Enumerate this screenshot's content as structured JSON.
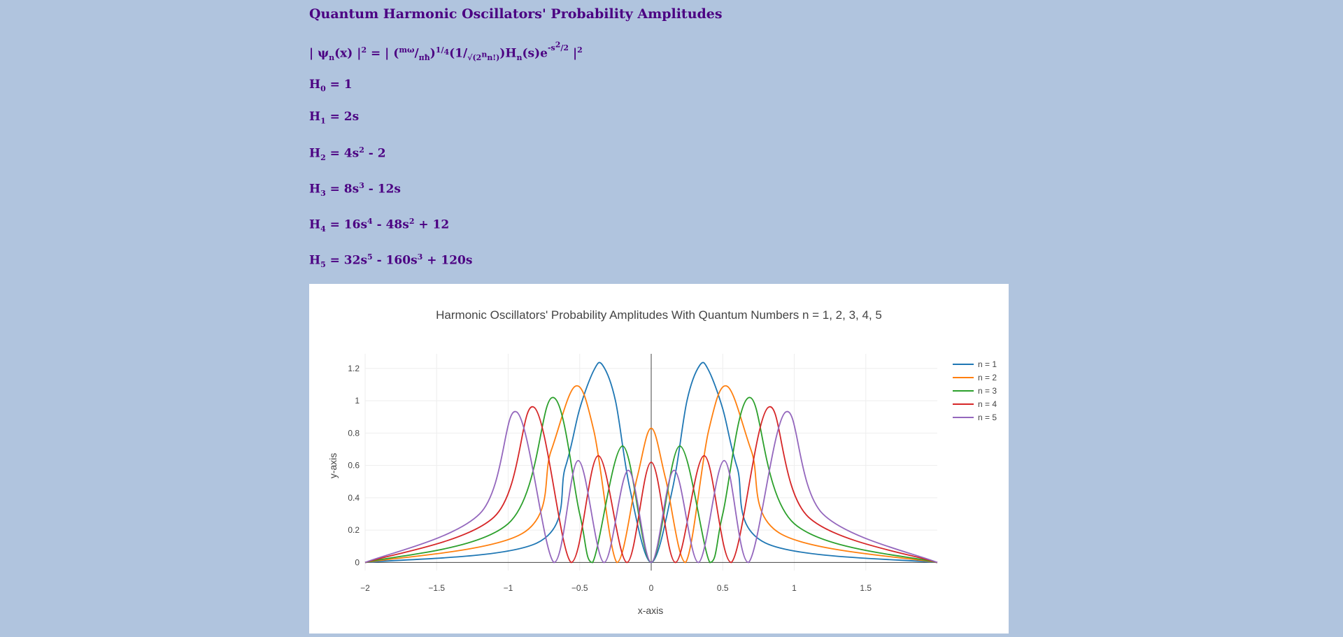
{
  "page": {
    "title": "Quantum Harmonic Oscillators' Probability Amplitudes",
    "formula": {
      "open": "| ψ",
      "sub_n": "n",
      "x_part": "(x) |",
      "sq": "2",
      "eq": " = | (",
      "m_omega": "mω",
      "slash": "/",
      "pi_hbar": "πħ",
      "close": ")",
      "quarter_1": "1",
      "quarter_4": "4",
      "one": "(1",
      "sqrt_part": "√(2",
      "n_sup": "n",
      "nfact": "n!)",
      "paren_close": ")H",
      "sub_n2": "n",
      "s_e": "(s)e",
      "exp_minus": "-s",
      "exp_2": "2",
      "exp_slash": "/",
      "exp_den": "2",
      "end": " |",
      "end_sq": "2"
    },
    "hermite": [
      {
        "h": "H",
        "sub": "0",
        "parts": [
          {
            "t": " = 1"
          }
        ]
      },
      {
        "h": "H",
        "sub": "1",
        "parts": [
          {
            "t": " = 2s"
          }
        ]
      },
      {
        "h": "H",
        "sub": "2",
        "parts": [
          {
            "t": " = 4s",
            "sup": "2"
          },
          {
            "t": " - 2"
          }
        ]
      },
      {
        "h": "H",
        "sub": "3",
        "parts": [
          {
            "t": " = 8s",
            "sup": "3"
          },
          {
            "t": " - 12s"
          }
        ]
      },
      {
        "h": "H",
        "sub": "4",
        "parts": [
          {
            "t": " = 16s",
            "sup": "4"
          },
          {
            "t": " - 48s",
            "sup": "2"
          },
          {
            "t": " + 12"
          }
        ]
      },
      {
        "h": "H",
        "sub": "5",
        "parts": [
          {
            "t": " = 32s",
            "sup": "5"
          },
          {
            "t": " - 160s",
            "sup": "3"
          },
          {
            "t": " + 120s"
          }
        ]
      }
    ]
  },
  "chart_data": {
    "type": "line",
    "title": "Harmonic Oscillators' Probability Amplitudes With Quantum Numbers n = 1, 2, 3, 4, 5",
    "xlabel": "x-axis",
    "ylabel": "y-axis",
    "xlim": [
      -2,
      2
    ],
    "ylim": [
      -0.05,
      1.29
    ],
    "x_ticks": [
      -2,
      -1.5,
      -1,
      -0.5,
      0,
      0.5,
      1,
      1.5
    ],
    "x_tick_labels": [
      "−2",
      "−1.5",
      "−1",
      "−0.5",
      "0",
      "0.5",
      "1",
      "1.5"
    ],
    "y_ticks": [
      0,
      0.2,
      0.4,
      0.6,
      0.8,
      1,
      1.2
    ],
    "y_tick_labels": [
      "0",
      "0.2",
      "0.4",
      "0.6",
      "0.8",
      "1",
      "1.2"
    ],
    "grid": true,
    "legend_position": "top-right",
    "series": [
      {
        "name": "n = 1",
        "color": "#1f77b4",
        "n": 1,
        "x": [
          -0.8,
          -0.6,
          -0.5,
          -0.4,
          -0.34,
          -0.25,
          -0.15,
          0,
          0.15,
          0.25,
          0.34,
          0.4,
          0.5,
          0.6,
          0.8
        ],
        "y": [
          0.12,
          0.59,
          0.95,
          1.19,
          1.22,
          1.0,
          0.46,
          0,
          0.46,
          1.0,
          1.22,
          1.19,
          0.95,
          0.59,
          0.12
        ]
      },
      {
        "name": "n = 2",
        "color": "#ff7f0e",
        "n": 2,
        "x": [
          -0.9,
          -0.7,
          -0.53,
          -0.4,
          -0.24,
          -0.1,
          0,
          0.1,
          0.24,
          0.4,
          0.53,
          0.7,
          0.9
        ],
        "y": [
          0.18,
          0.69,
          1.09,
          0.81,
          0,
          0.52,
          0.83,
          0.52,
          0,
          0.81,
          1.09,
          0.69,
          0.18
        ]
      },
      {
        "name": "n = 3",
        "color": "#2ca02c",
        "n": 3,
        "x": [
          -1.0,
          -0.69,
          -0.5,
          -0.41,
          -0.2,
          0,
          0.2,
          0.41,
          0.5,
          0.69,
          1.0
        ],
        "y": [
          0.24,
          1.02,
          0.3,
          0,
          0.72,
          0,
          0.72,
          0,
          0.3,
          1.02,
          0.24
        ]
      },
      {
        "name": "n = 4",
        "color": "#d62728",
        "n": 4,
        "x": [
          -1.1,
          -0.82,
          -0.56,
          -0.37,
          -0.17,
          0,
          0.17,
          0.37,
          0.56,
          0.82,
          1.1
        ],
        "y": [
          0.28,
          0.96,
          0,
          0.66,
          0,
          0.62,
          0,
          0.66,
          0,
          0.96,
          0.28
        ]
      },
      {
        "name": "n = 5",
        "color": "#9467bd",
        "n": 5,
        "x": [
          -1.2,
          -0.94,
          -0.68,
          -0.51,
          -0.33,
          -0.16,
          0,
          0.16,
          0.33,
          0.51,
          0.68,
          0.94,
          1.2
        ],
        "y": [
          0.3,
          0.93,
          0,
          0.63,
          0,
          0.57,
          0,
          0.57,
          0,
          0.63,
          0,
          0.93,
          0.3
        ]
      }
    ]
  }
}
